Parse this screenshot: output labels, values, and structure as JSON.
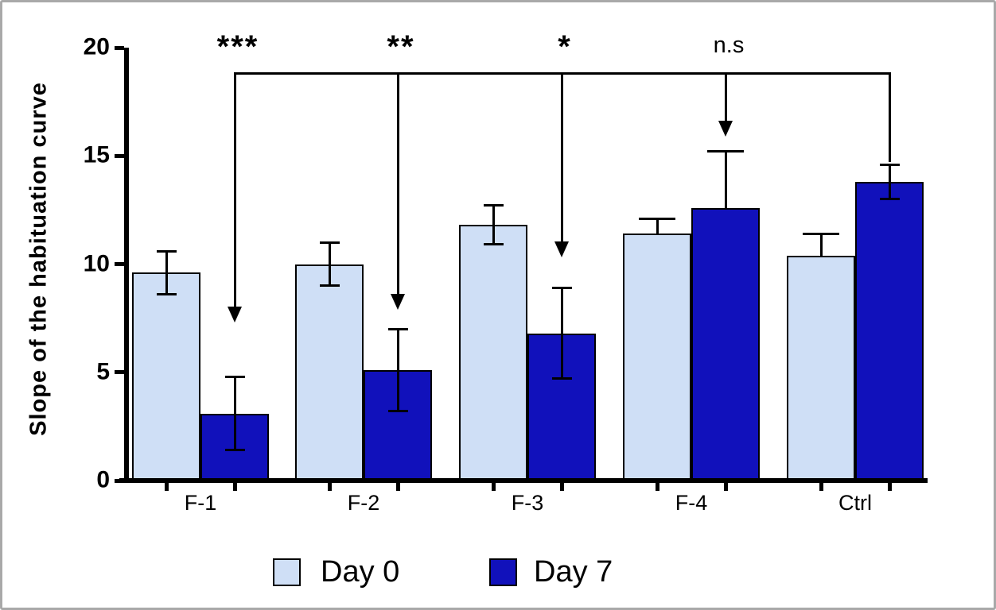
{
  "figure": {
    "background": "#ffffff",
    "border_color": "#a9a9a9"
  },
  "chart_data": {
    "type": "bar",
    "title": "",
    "ylabel": "Slope of the habituation curve",
    "xlabel": "",
    "ylim": [
      0,
      20
    ],
    "yticks": [
      0,
      5,
      10,
      15,
      20
    ],
    "grid": false,
    "legend_position": "bottom-center",
    "categories": [
      "F-1",
      "F-2",
      "F-3",
      "F-4",
      "Ctrl"
    ],
    "series": [
      {
        "name": "Day 0",
        "color": "#cfdff6",
        "border_color": "#000000",
        "values": [
          9.6,
          10.0,
          11.8,
          11.4,
          10.4
        ],
        "errors": [
          1.0,
          1.0,
          0.9,
          0.7,
          1.0
        ],
        "error_whiskers": [
          "both",
          "both",
          "both",
          "upper",
          "upper"
        ]
      },
      {
        "name": "Day 7",
        "color": "#1111bb",
        "border_color": "#000000",
        "values": [
          3.1,
          5.1,
          6.8,
          12.6,
          13.8
        ],
        "errors": [
          1.7,
          1.9,
          2.1,
          2.6,
          0.8
        ],
        "error_whiskers": [
          "both",
          "both",
          "both",
          "upper",
          "both"
        ]
      }
    ],
    "annotations": {
      "bracket_value": 18.85,
      "comparisons": [
        {
          "label": "***",
          "category": "F-1",
          "series": "Day 7",
          "arrow_tip_value": 7.3
        },
        {
          "label": "**",
          "category": "F-2",
          "series": "Day 7",
          "arrow_tip_value": 7.9
        },
        {
          "label": "*",
          "category": "F-3",
          "series": "Day 7",
          "arrow_tip_value": 10.3
        },
        {
          "label": "n.s",
          "category": "F-4",
          "series": "Day 7",
          "arrow_tip_value": 15.9
        }
      ],
      "terminal_drop": {
        "category": "Ctrl",
        "series": "Day 7",
        "drop_to_value": 14.7,
        "arrowhead": false
      }
    }
  }
}
